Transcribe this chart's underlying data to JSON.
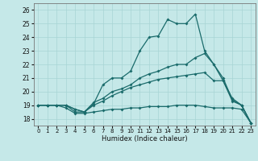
{
  "xlabel": "Humidex (Indice chaleur)",
  "xlim": [
    -0.5,
    23.5
  ],
  "ylim": [
    17.5,
    26.5
  ],
  "xticks": [
    0,
    1,
    2,
    3,
    4,
    5,
    6,
    7,
    8,
    9,
    10,
    11,
    12,
    13,
    14,
    15,
    16,
    17,
    18,
    19,
    20,
    21,
    22,
    23
  ],
  "yticks": [
    18,
    19,
    20,
    21,
    22,
    23,
    24,
    25,
    26
  ],
  "background_color": "#c5e8e8",
  "grid_color": "#a8d4d4",
  "line_color": "#1a6b6b",
  "line1_x": [
    0,
    1,
    2,
    3,
    4,
    5,
    6,
    7,
    8,
    9,
    10,
    11,
    12,
    13,
    14,
    15,
    16,
    17,
    18,
    19,
    20,
    21,
    22,
    23
  ],
  "line1_y": [
    19.0,
    19.0,
    19.0,
    19.0,
    18.5,
    18.5,
    19.1,
    20.5,
    21.0,
    21.0,
    21.5,
    23.0,
    24.0,
    24.1,
    25.3,
    25.0,
    25.0,
    25.7,
    23.0,
    22.0,
    21.0,
    19.4,
    19.0,
    17.7
  ],
  "line2_x": [
    0,
    1,
    2,
    3,
    4,
    5,
    6,
    7,
    8,
    9,
    10,
    11,
    12,
    13,
    14,
    15,
    16,
    17,
    18,
    19,
    20,
    21,
    22,
    23
  ],
  "line2_y": [
    19.0,
    19.0,
    19.0,
    19.0,
    18.7,
    18.5,
    19.2,
    19.5,
    20.0,
    20.2,
    20.5,
    21.0,
    21.3,
    21.5,
    21.8,
    22.0,
    22.0,
    22.5,
    22.8,
    22.0,
    20.8,
    19.3,
    19.0,
    17.7
  ],
  "line3_x": [
    0,
    1,
    2,
    3,
    4,
    5,
    6,
    7,
    8,
    9,
    10,
    11,
    12,
    13,
    14,
    15,
    16,
    17,
    18,
    19,
    20,
    21,
    22,
    23
  ],
  "line3_y": [
    19.0,
    19.0,
    19.0,
    19.0,
    18.7,
    18.5,
    19.0,
    19.3,
    19.7,
    20.0,
    20.3,
    20.5,
    20.7,
    20.9,
    21.0,
    21.1,
    21.2,
    21.3,
    21.4,
    20.8,
    20.8,
    19.5,
    19.0,
    17.7
  ],
  "line4_x": [
    0,
    1,
    2,
    3,
    4,
    5,
    6,
    7,
    8,
    9,
    10,
    11,
    12,
    13,
    14,
    15,
    16,
    17,
    18,
    19,
    20,
    21,
    22,
    23
  ],
  "line4_y": [
    19.0,
    19.0,
    19.0,
    18.8,
    18.4,
    18.4,
    18.5,
    18.6,
    18.7,
    18.7,
    18.8,
    18.8,
    18.9,
    18.9,
    18.9,
    19.0,
    19.0,
    19.0,
    18.9,
    18.8,
    18.8,
    18.8,
    18.7,
    17.7
  ]
}
